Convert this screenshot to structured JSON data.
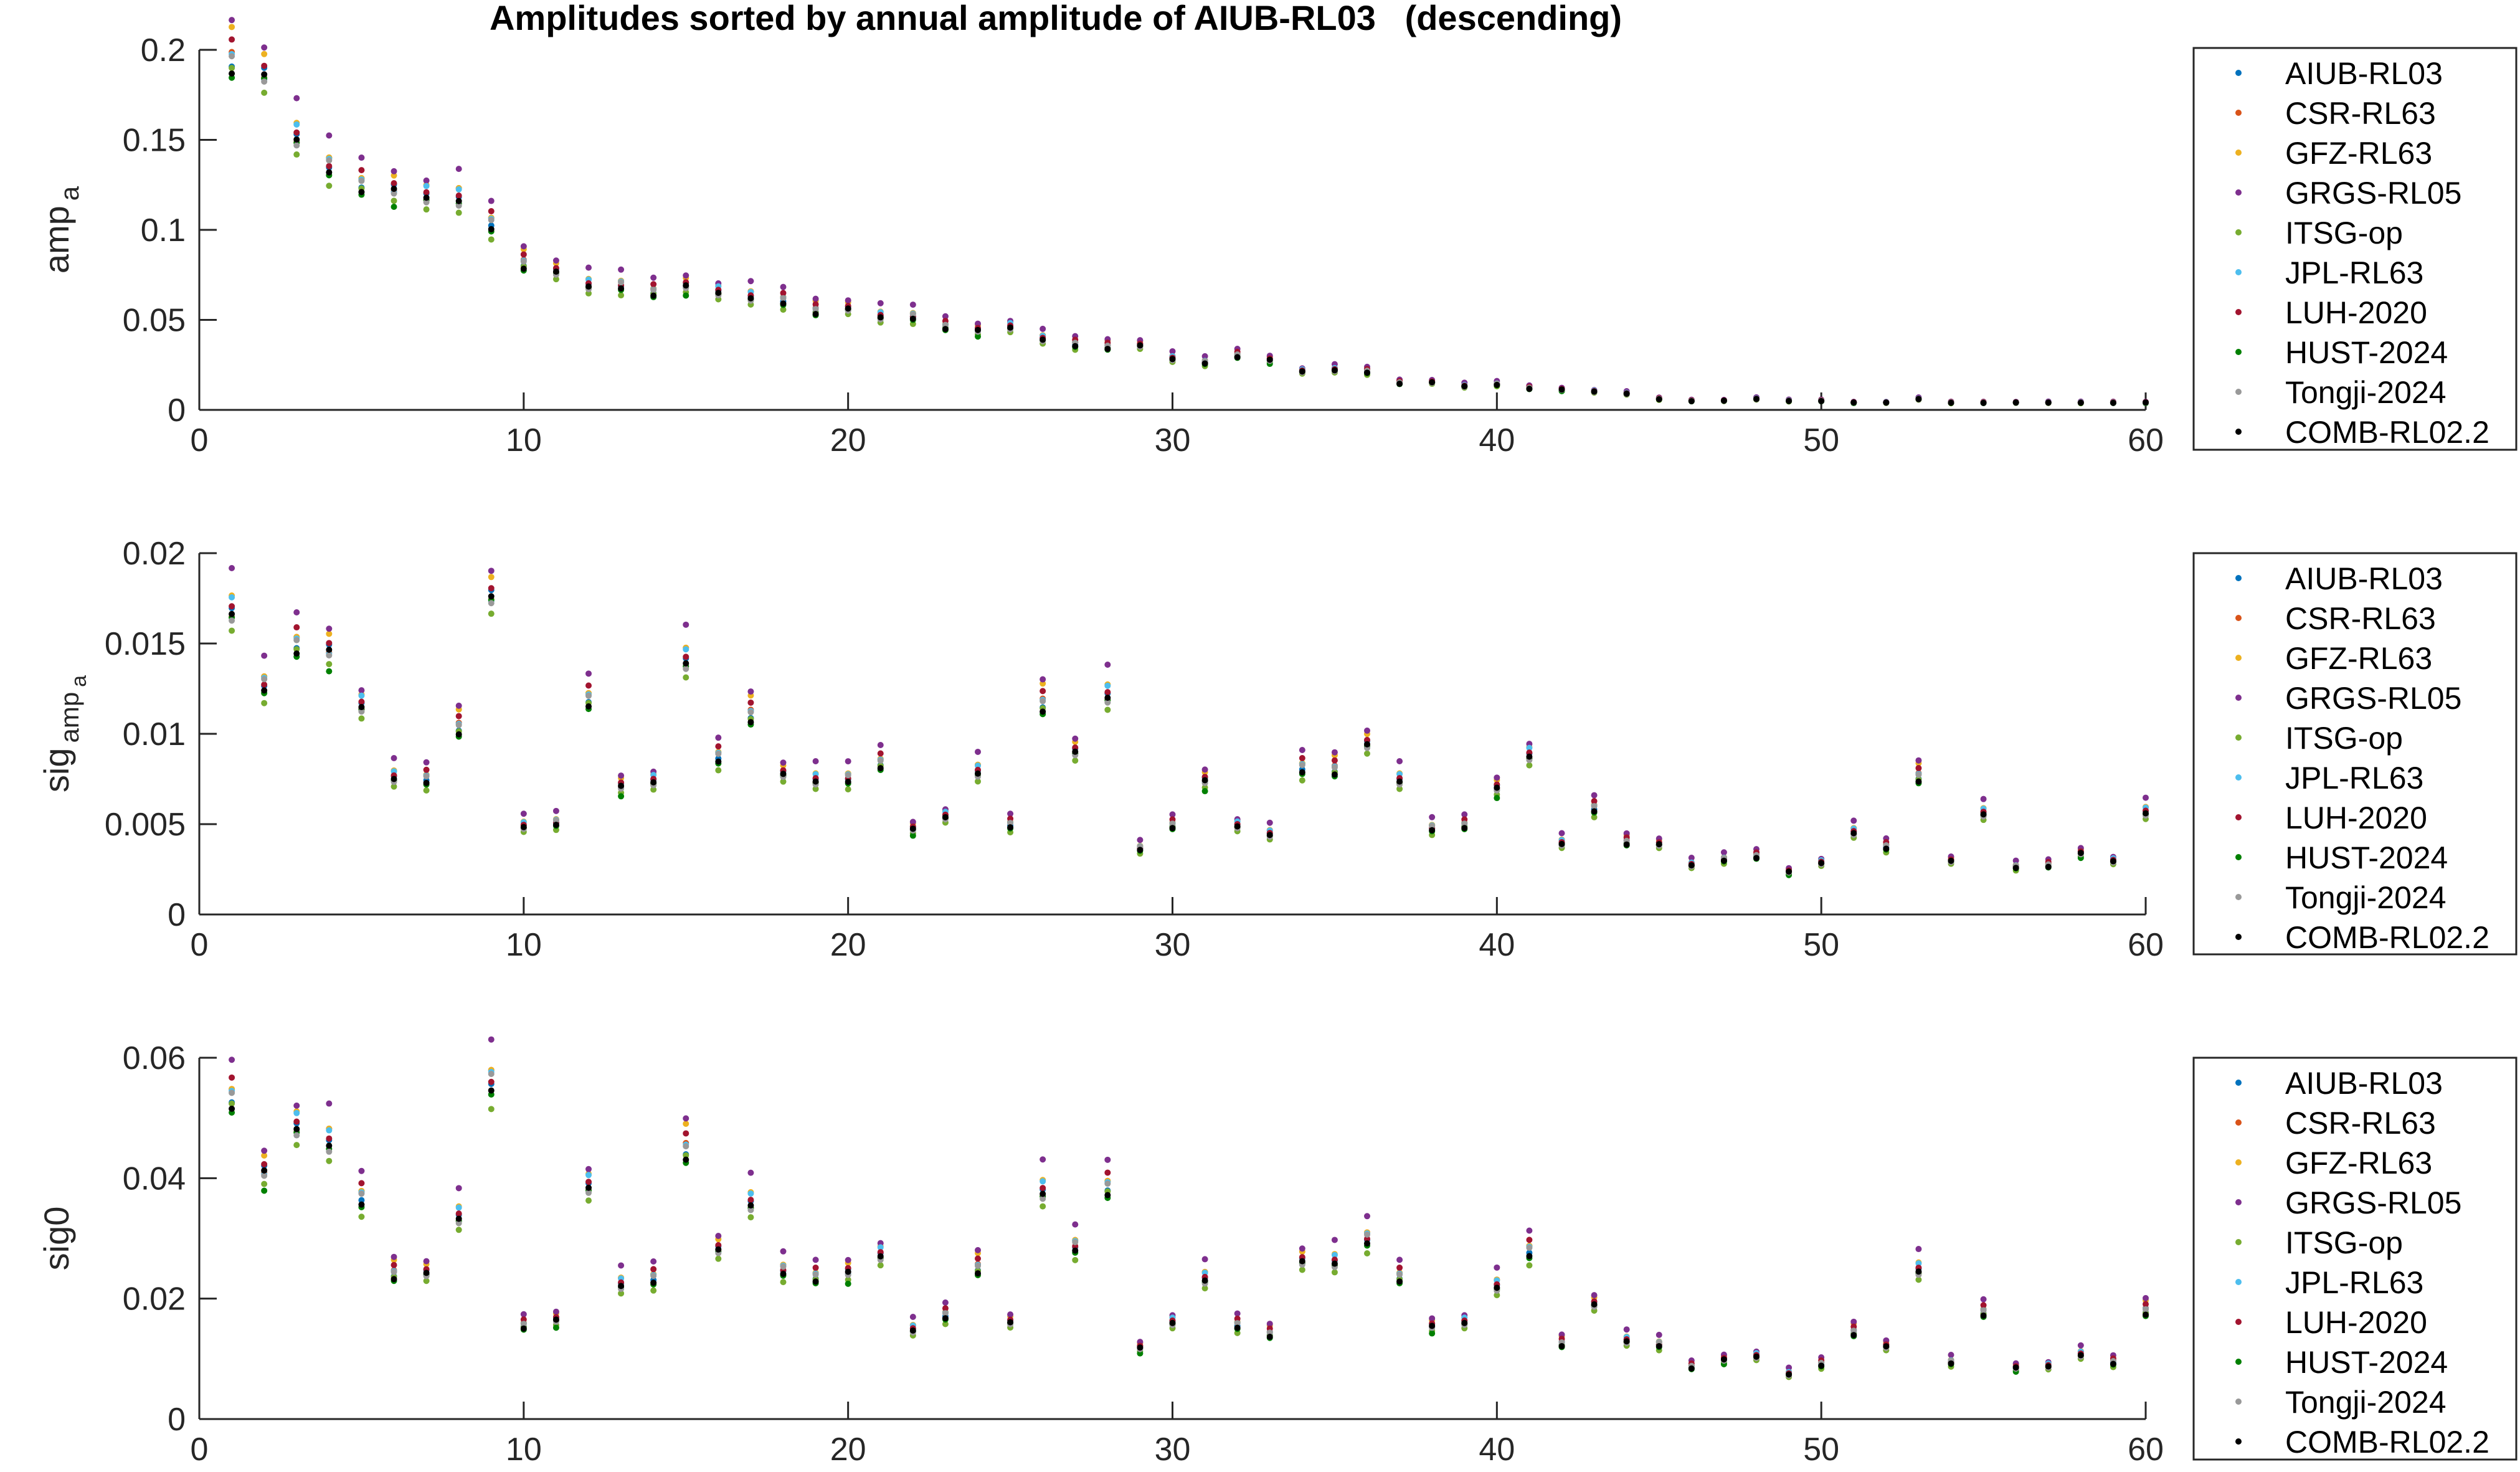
{
  "chart_data": {
    "type": "scatter",
    "title": "Amplitudes sorted by annual amplitude of AIUB-RL03   (descending)",
    "x": [
      1,
      2,
      3,
      4,
      5,
      6,
      7,
      8,
      9,
      10,
      11,
      12,
      13,
      14,
      15,
      16,
      17,
      18,
      19,
      20,
      21,
      22,
      23,
      24,
      25,
      26,
      27,
      28,
      29,
      30,
      31,
      32,
      33,
      34,
      35,
      36,
      37,
      38,
      39,
      40,
      41,
      42,
      43,
      44,
      45,
      46,
      47,
      48,
      49,
      50,
      51,
      52,
      53,
      54,
      55,
      56,
      57,
      58,
      59,
      60
    ],
    "series": [
      {
        "name": "AIUB-RL03",
        "color": "#0072BD",
        "factor": 1.02
      },
      {
        "name": "CSR-RL63",
        "color": "#D95319",
        "factor": 1.03
      },
      {
        "name": "GFZ-RL63",
        "color": "#EDB120",
        "factor": 1.07
      },
      {
        "name": "GRGS-RL05",
        "color": "#7E2F8E",
        "factor": 1.13
      },
      {
        "name": "ITSG-op",
        "color": "#77AC30",
        "factor": 0.96
      },
      {
        "name": "JPL-RL63",
        "color": "#4DBEEE",
        "factor": 1.04
      },
      {
        "name": "LUH-2020",
        "color": "#A2142F",
        "factor": 1.05
      },
      {
        "name": "HUST-2024",
        "color": "#008000",
        "factor": 0.98
      },
      {
        "name": "Tongji-2024",
        "color": "#999999",
        "factor": 1.01
      },
      {
        "name": "COMB-RL02.2",
        "color": "#000000",
        "factor": 1.0
      }
    ],
    "subplots": [
      {
        "ylabel_main": "amp",
        "ylabel_sub": "a",
        "ylabel_subsub": "",
        "xlim": [
          0,
          60
        ],
        "ylim": [
          0,
          0.2
        ],
        "xticks": [
          "0",
          "10",
          "20",
          "30",
          "40",
          "50",
          "60"
        ],
        "yticks": [
          "0",
          "0.05",
          "0.1",
          "0.15",
          "0.2"
        ],
        "comb": [
          0.193,
          0.182,
          0.149,
          0.133,
          0.124,
          0.119,
          0.116,
          0.116,
          0.102,
          0.081,
          0.075,
          0.068,
          0.068,
          0.065,
          0.067,
          0.064,
          0.062,
          0.06,
          0.055,
          0.055,
          0.051,
          0.051,
          0.046,
          0.043,
          0.045,
          0.039,
          0.036,
          0.035,
          0.035,
          0.028,
          0.026,
          0.03,
          0.027,
          0.021,
          0.022,
          0.021,
          0.015,
          0.015,
          0.013,
          0.014,
          0.012,
          0.011,
          0.01,
          0.009,
          0.006,
          0.005,
          0.005,
          0.006,
          0.005,
          0.005,
          0.004,
          0.004,
          0.006,
          0.004,
          0.004,
          0.004,
          0.004,
          0.004,
          0.004,
          0.004
        ]
      },
      {
        "ylabel_main": "sig",
        "ylabel_sub": "amp",
        "ylabel_subsub": "a",
        "xlim": [
          0,
          60
        ],
        "ylim": [
          0,
          0.02
        ],
        "xticks": [
          "0",
          "10",
          "20",
          "30",
          "40",
          "50",
          "60"
        ],
        "yticks": [
          "0",
          "0.005",
          "0.01",
          "0.015",
          "0.02"
        ],
        "comb": [
          0.0165,
          0.0125,
          0.0148,
          0.0142,
          0.0113,
          0.0075,
          0.0074,
          0.0103,
          0.0172,
          0.0048,
          0.005,
          0.0118,
          0.0069,
          0.0072,
          0.0139,
          0.0086,
          0.011,
          0.0076,
          0.0073,
          0.0074,
          0.0083,
          0.0046,
          0.0053,
          0.0078,
          0.0049,
          0.0116,
          0.0088,
          0.0119,
          0.0036,
          0.0049,
          0.0072,
          0.0048,
          0.0044,
          0.008,
          0.008,
          0.0092,
          0.0073,
          0.0047,
          0.0049,
          0.0068,
          0.0086,
          0.0039,
          0.0058,
          0.004,
          0.0038,
          0.0027,
          0.003,
          0.0032,
          0.0023,
          0.0028,
          0.0045,
          0.0037,
          0.0076,
          0.0029,
          0.0055,
          0.0026,
          0.0027,
          0.0033,
          0.0029,
          0.0056
        ]
      },
      {
        "ylabel_main": "sig0",
        "ylabel_sub": "",
        "ylabel_subsub": "",
        "xlim": [
          0,
          60
        ],
        "ylim": [
          0,
          0.06
        ],
        "xticks": [
          "0",
          "10",
          "20",
          "30",
          "40",
          "50",
          "60"
        ],
        "yticks": [
          "0",
          "0.02",
          "0.04",
          "0.06"
        ],
        "comb": [
          0.0528,
          0.04,
          0.0474,
          0.0454,
          0.0362,
          0.024,
          0.0237,
          0.033,
          0.055,
          0.0154,
          0.016,
          0.0378,
          0.0221,
          0.023,
          0.0445,
          0.0275,
          0.0352,
          0.0243,
          0.0234,
          0.0237,
          0.0266,
          0.0147,
          0.017,
          0.025,
          0.0157,
          0.0371,
          0.0282,
          0.0381,
          0.0115,
          0.0157,
          0.023,
          0.0154,
          0.0141,
          0.0256,
          0.0256,
          0.0294,
          0.0234,
          0.015,
          0.0157,
          0.0218,
          0.0275,
          0.0125,
          0.0186,
          0.0128,
          0.0122,
          0.0086,
          0.0096,
          0.0102,
          0.0074,
          0.009,
          0.0144,
          0.0118,
          0.0243,
          0.0093,
          0.0176,
          0.0083,
          0.0086,
          0.0106,
          0.0093,
          0.0179
        ]
      }
    ]
  }
}
